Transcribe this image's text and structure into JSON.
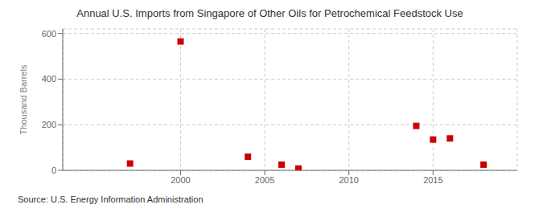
{
  "chart_data": {
    "type": "scatter",
    "title": "Annual U.S. Imports from Singapore of Other Oils for Petrochemical Feedstock Use",
    "ylabel": "Thousand Barrels",
    "annotations": [
      "Source: U.S. Energy Information Administration"
    ],
    "x": [
      1997,
      2000,
      2004,
      2006,
      2007,
      2014,
      2015,
      2016,
      2018
    ],
    "values": [
      30,
      565,
      60,
      25,
      8,
      195,
      135,
      140,
      25
    ],
    "color": "#cc0000",
    "marker": "square",
    "xlim": [
      1993,
      2020
    ],
    "ylim": [
      0,
      620
    ],
    "xticks": [
      2000,
      2005,
      2010,
      2015
    ],
    "yticks": [
      0,
      200,
      400,
      600
    ],
    "grid": true
  }
}
